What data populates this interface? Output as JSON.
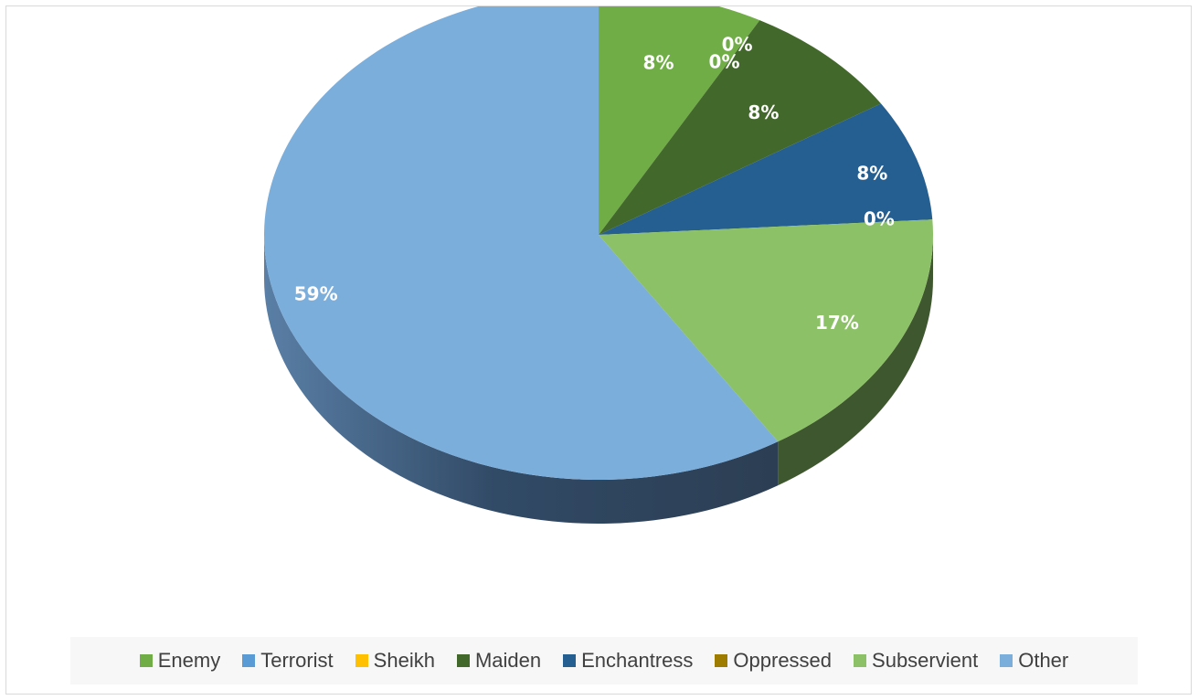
{
  "chart_data": {
    "type": "pie",
    "style": "3d",
    "title": "",
    "categories": [
      "Enemy",
      "Terrorist",
      "Sheikh",
      "Maiden",
      "Enchantress",
      "Oppressed",
      "Subservient",
      "Other"
    ],
    "values": [
      8,
      0,
      0,
      8,
      8,
      0,
      17,
      59
    ],
    "labels": [
      "8%",
      "0%",
      "0%",
      "8%",
      "8%",
      "0%",
      "17%",
      "59%"
    ],
    "colors": [
      "#70ad47",
      "#5b9bd5",
      "#ffc000",
      "#43682b",
      "#255e91",
      "#9e7c00",
      "#8cc168",
      "#7caedc"
    ],
    "legend_position": "bottom"
  }
}
